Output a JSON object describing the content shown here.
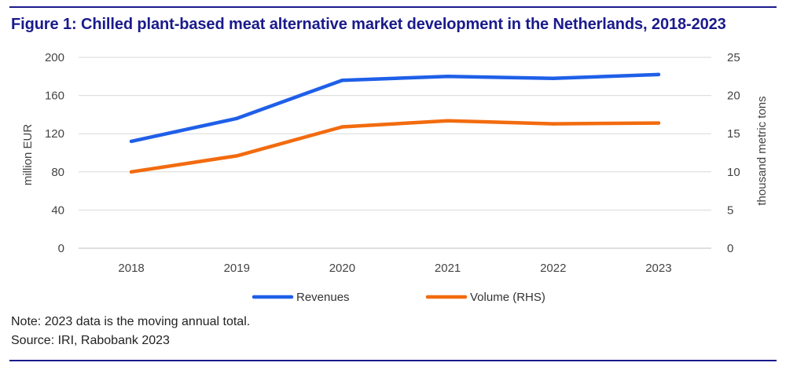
{
  "title": "Figure 1: Chilled plant-based meat alternative market development in the Netherlands, 2018-2023",
  "note": "Note: 2023 data is the moving annual total.",
  "source": "Source: IRI, Rabobank 2023",
  "colors": {
    "title": "#1a1a8c",
    "revenues": "#1f5fe8",
    "volume": "#f26b0f",
    "grid": "#d9d9d9",
    "axis_text": "#444444"
  },
  "chart_data": {
    "type": "line",
    "title": "Figure 1: Chilled plant-based meat alternative market development in the Netherlands, 2018-2023",
    "categories": [
      "2018",
      "2019",
      "2020",
      "2021",
      "2022",
      "2023"
    ],
    "ylabel": "million EUR",
    "y2label": "thousand metric tons",
    "ylim": [
      0,
      200
    ],
    "y2lim": [
      0,
      25
    ],
    "yticks": [
      "0",
      "40",
      "80",
      "120",
      "160",
      "200"
    ],
    "y2ticks": [
      "0",
      "5",
      "10",
      "15",
      "20",
      "25"
    ],
    "grid": true,
    "legend": "bottom",
    "series": [
      {
        "name": "Revenues",
        "axis": "left",
        "values": [
          112,
          136,
          176,
          180,
          178,
          182
        ]
      },
      {
        "name": "Volume (RHS)",
        "axis": "right",
        "values": [
          10.0,
          12.1,
          15.9,
          16.7,
          16.3,
          16.4
        ]
      }
    ]
  }
}
